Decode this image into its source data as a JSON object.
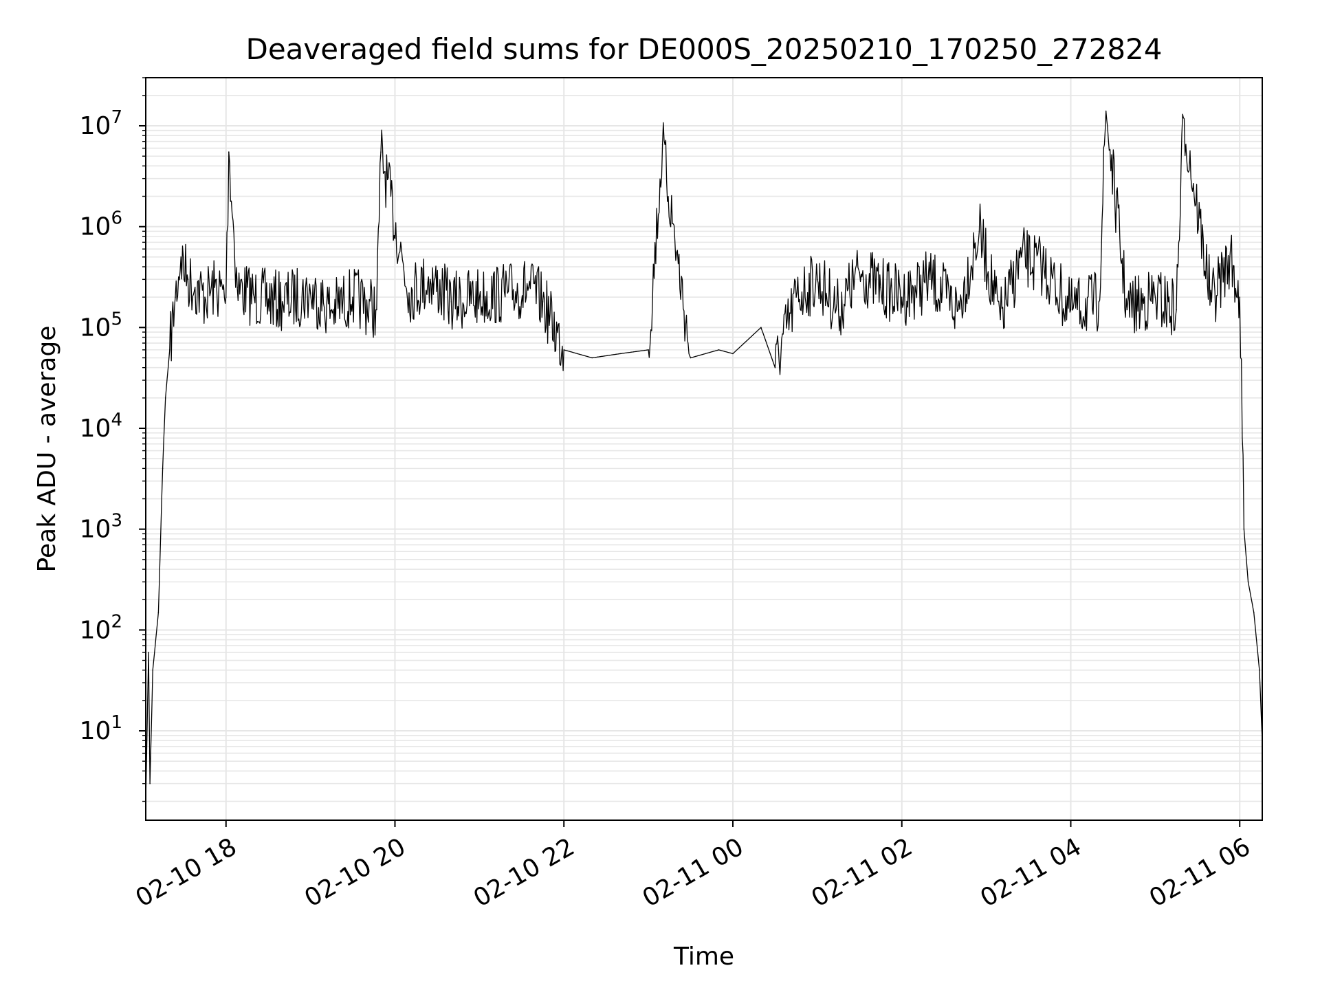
{
  "chart_data": {
    "type": "line",
    "title": "Deaveraged field sums for DE000S_20250210_170250_272824",
    "xlabel": "Time",
    "ylabel": "Peak ADU - average",
    "yscale": "log",
    "ylim": [
      1.3,
      30000000
    ],
    "xlim": [
      "2025-02-10 17:03",
      "2025-02-11 06:16"
    ],
    "grid": true,
    "line_color": "#000000",
    "grid_color": "#e6e6e6",
    "x_ticks": [
      {
        "label": "02-10 18",
        "t": "2025-02-10 18:00"
      },
      {
        "label": "02-10 20",
        "t": "2025-02-10 20:00"
      },
      {
        "label": "02-10 22",
        "t": "2025-02-10 22:00"
      },
      {
        "label": "02-11 00",
        "t": "2025-02-11 00:00"
      },
      {
        "label": "02-11 02",
        "t": "2025-02-11 02:00"
      },
      {
        "label": "02-11 04",
        "t": "2025-02-11 04:00"
      },
      {
        "label": "02-11 06",
        "t": "2025-02-11 06:00"
      }
    ],
    "y_ticks": [
      {
        "base": "10",
        "exp": "1",
        "value": 10
      },
      {
        "base": "10",
        "exp": "2",
        "value": 100
      },
      {
        "base": "10",
        "exp": "3",
        "value": 1000
      },
      {
        "base": "10",
        "exp": "4",
        "value": 10000
      },
      {
        "base": "10",
        "exp": "5",
        "value": 100000
      },
      {
        "base": "10",
        "exp": "6",
        "value": 1000000
      },
      {
        "base": "10",
        "exp": "7",
        "value": 10000000
      }
    ],
    "series": [
      {
        "x": [
          "2025-02-10 17:03",
          "2025-02-10 17:05",
          "2025-02-10 17:06",
          "2025-02-10 17:08",
          "2025-02-10 17:12",
          "2025-02-10 17:15",
          "2025-02-10 17:17",
          "2025-02-10 17:20",
          "2025-02-10 17:24",
          "2025-02-10 17:28",
          "2025-02-10 17:33",
          "2025-02-10 17:38",
          "2025-02-10 17:45",
          "2025-02-10 17:52",
          "2025-02-10 18:00",
          "2025-02-10 18:02",
          "2025-02-10 18:08",
          "2025-02-10 18:20",
          "2025-02-10 18:40",
          "2025-02-10 19:00",
          "2025-02-10 19:15",
          "2025-02-10 19:30",
          "2025-02-10 19:47",
          "2025-02-10 19:50",
          "2025-02-10 20:10",
          "2025-02-10 20:25",
          "2025-02-10 20:40",
          "2025-02-10 21:00",
          "2025-02-10 21:20",
          "2025-02-10 21:35",
          "2025-02-10 21:45",
          "2025-02-10 22:00",
          "2025-02-10 22:20",
          "2025-02-10 22:40",
          "2025-02-10 23:00",
          "2025-02-10 23:10",
          "2025-02-10 23:30",
          "2025-02-10 23:50",
          "2025-02-11 00:00",
          "2025-02-11 00:20",
          "2025-02-11 00:30",
          "2025-02-11 00:45",
          "2025-02-11 01:00",
          "2025-02-11 01:15",
          "2025-02-11 01:30",
          "2025-02-11 01:45",
          "2025-02-11 02:00",
          "2025-02-11 02:20",
          "2025-02-11 02:40",
          "2025-02-11 02:55",
          "2025-02-11 03:10",
          "2025-02-11 03:25",
          "2025-02-11 03:40",
          "2025-02-11 04:00",
          "2025-02-11 04:20",
          "2025-02-11 04:25",
          "2025-02-11 04:40",
          "2025-02-11 05:00",
          "2025-02-11 05:15",
          "2025-02-11 05:20",
          "2025-02-11 05:40",
          "2025-02-11 05:53",
          "2025-02-11 06:00",
          "2025-02-11 06:03",
          "2025-02-11 06:06",
          "2025-02-11 06:10",
          "2025-02-11 06:14",
          "2025-02-11 06:16"
        ],
        "y": [
          2,
          60,
          3,
          40,
          150,
          4000,
          20000,
          60000,
          200000,
          500000,
          300000,
          250000,
          200000,
          250000,
          200000,
          5500000,
          250000,
          200000,
          180000,
          220000,
          150000,
          200000,
          150000,
          5500000,
          220000,
          300000,
          180000,
          200000,
          220000,
          250000,
          180000,
          60000,
          50000,
          55000,
          60000,
          6500000,
          50000,
          60000,
          55000,
          100000,
          40000,
          200000,
          300000,
          150000,
          350000,
          250000,
          200000,
          300000,
          150000,
          900000,
          120000,
          500000,
          400000,
          150000,
          180000,
          14000000,
          150000,
          200000,
          150000,
          12000000,
          180000,
          500000,
          200000,
          1000,
          300,
          150,
          40,
          8
        ]
      }
    ]
  }
}
